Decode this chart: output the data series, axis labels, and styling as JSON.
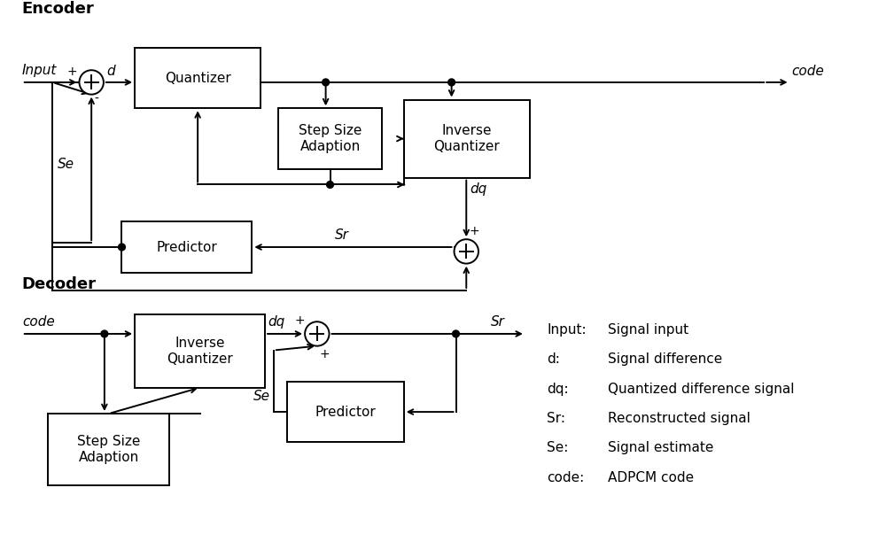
{
  "bg_color": "#ffffff",
  "line_color": "#000000",
  "lw": 1.4,
  "font_size": 11,
  "font_size_title": 13,
  "encoder_title": "Encoder",
  "decoder_title": "Decoder",
  "legend_entries": [
    [
      "Input:",
      "Signal input"
    ],
    [
      "d:",
      "Signal difference"
    ],
    [
      "dq:",
      "Quantized difference signal"
    ],
    [
      "Sr:",
      "Reconstructed signal"
    ],
    [
      "Se:",
      "Signal estimate"
    ],
    [
      "code:",
      "ADPCM code"
    ]
  ]
}
